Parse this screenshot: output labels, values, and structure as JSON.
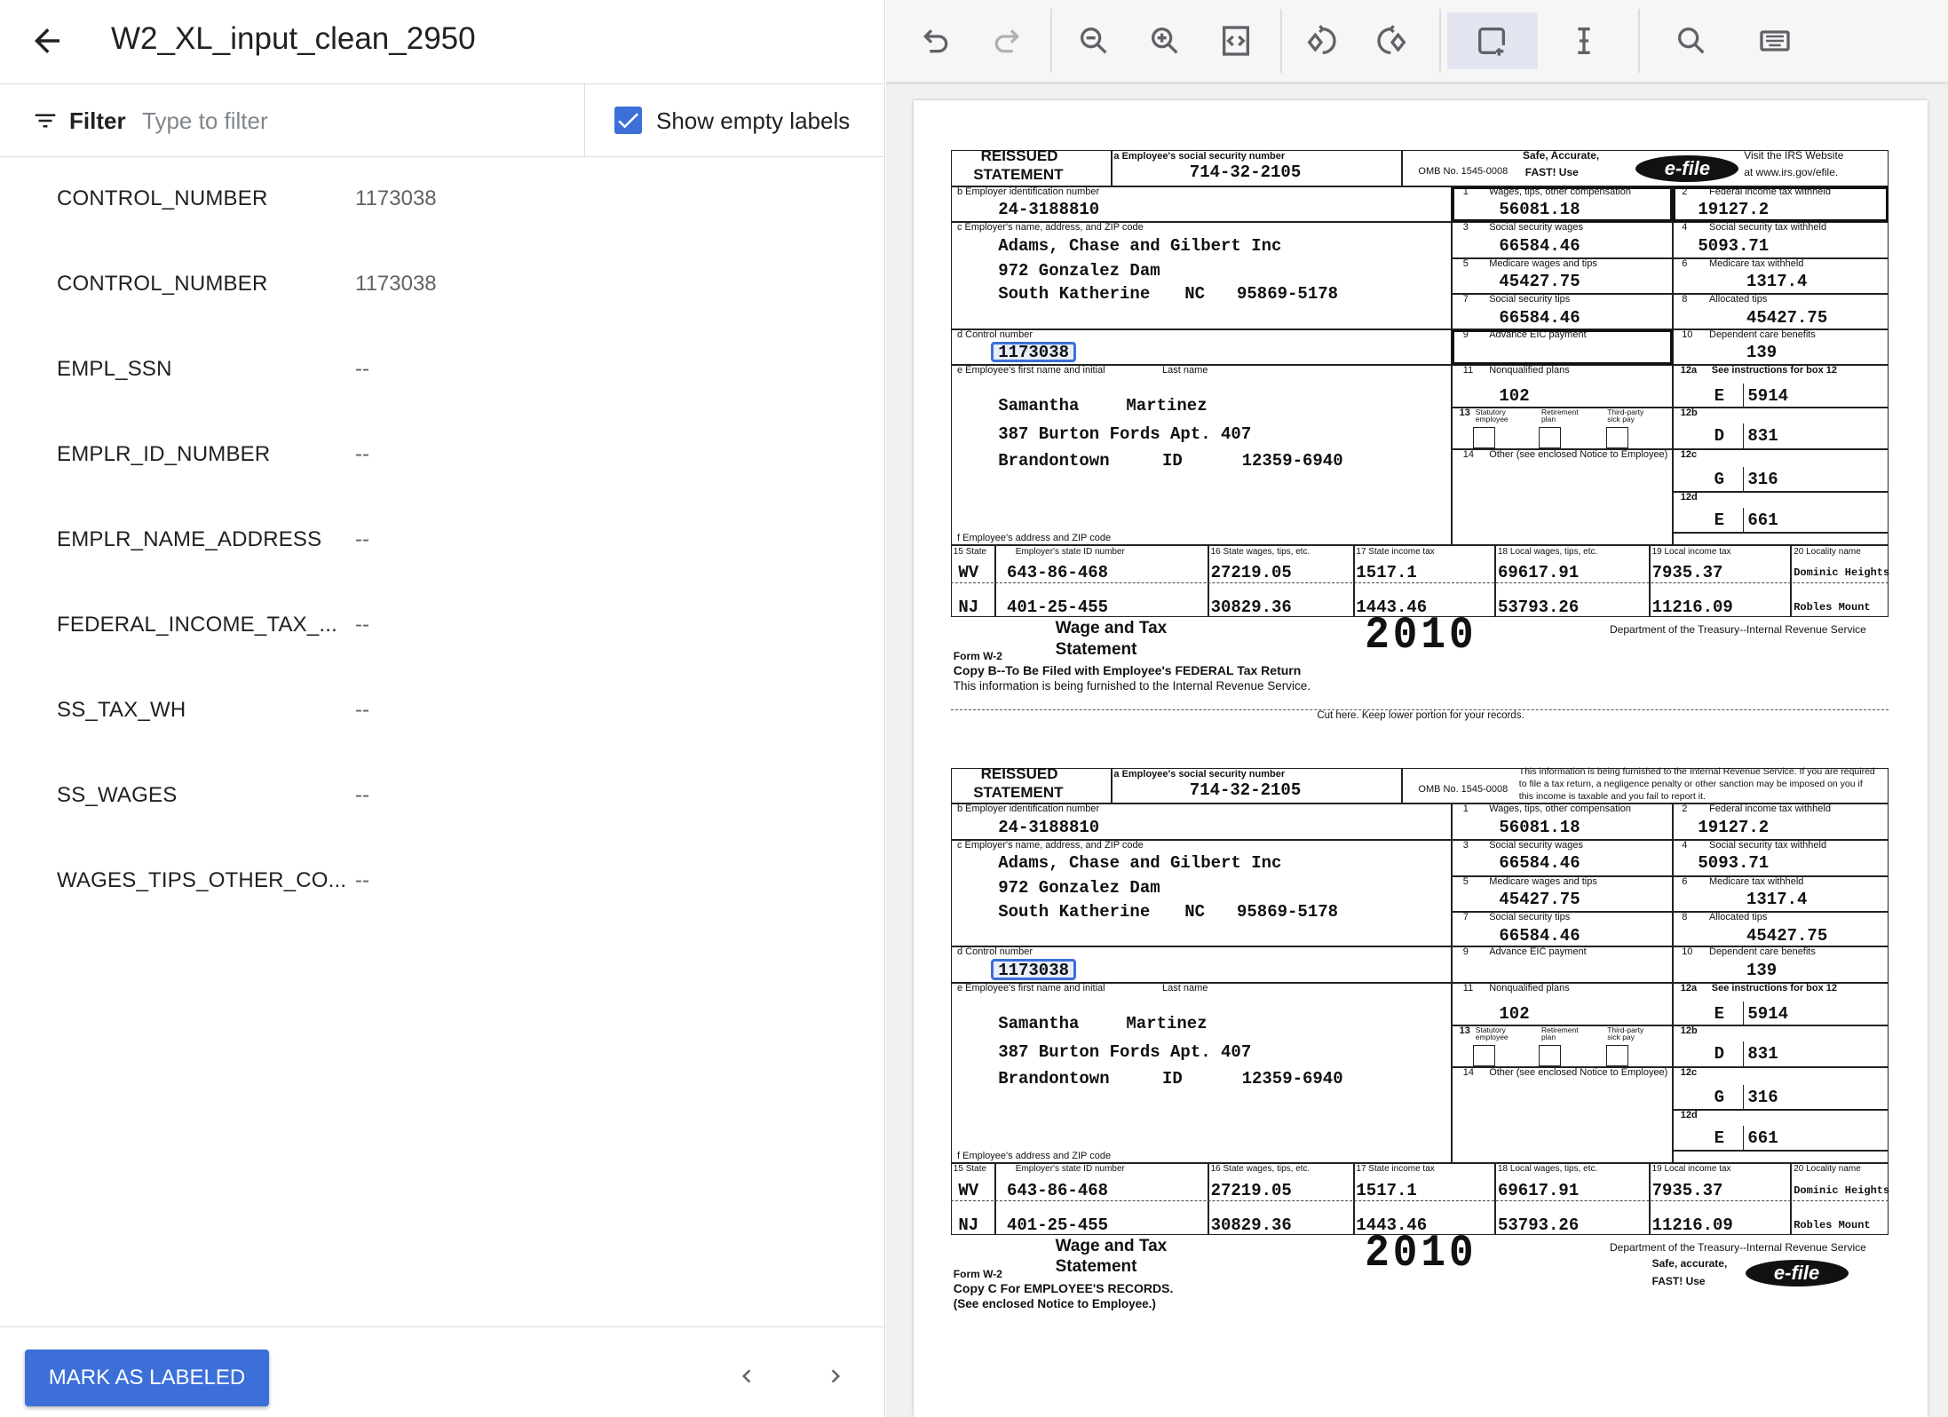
{
  "header": {
    "title": "W2_XL_input_clean_2950"
  },
  "filter": {
    "label": "Filter",
    "placeholder": "Type to filter",
    "value": "",
    "show_empty_label": "Show empty labels",
    "show_empty_checked": true
  },
  "fields": [
    {
      "key": "CONTROL_NUMBER",
      "value": "1173038"
    },
    {
      "key": "CONTROL_NUMBER",
      "value": "1173038"
    },
    {
      "key": "EMPL_SSN",
      "value": "--"
    },
    {
      "key": "EMPLR_ID_NUMBER",
      "value": "--"
    },
    {
      "key": "EMPLR_NAME_ADDRESS",
      "value": "--"
    },
    {
      "key": "FEDERAL_INCOME_TAX_...",
      "value": "--"
    },
    {
      "key": "SS_TAX_WH",
      "value": "--"
    },
    {
      "key": "SS_WAGES",
      "value": "--"
    },
    {
      "key": "WAGES_TIPS_OTHER_CO...",
      "value": "--"
    }
  ],
  "footer": {
    "mark_label": "MARK AS LABELED"
  },
  "toolbar": {
    "icons": [
      "undo-icon",
      "redo-icon",
      "zoom-out-icon",
      "zoom-in-icon",
      "fit-page-icon",
      "rotate-left-icon",
      "rotate-right-icon",
      "add-box-icon",
      "text-cursor-icon",
      "search-icon",
      "keyboard-icon"
    ],
    "selected": "add-box-icon",
    "accent": "#3c6fd8"
  },
  "form": {
    "reissued1": "REISSUED",
    "reissued2": "STATEMENT",
    "lbl_a": "a  Employee's social security number",
    "ssn": "714-32-2105",
    "omb": "OMB No. 1545-0008",
    "lbl_b": "b  Employer identification number",
    "ein": "24-3188810",
    "lbl_c": "c  Employer's name, address, and ZIP code",
    "employer_name": "Adams, Chase and Gilbert Inc",
    "employer_street": "972 Gonzalez Dam",
    "employer_city": "South Katherine",
    "employer_state": "NC",
    "employer_zip": "95869-5178",
    "lbl_d": "d  Control number",
    "control": "1173038",
    "lbl_e": "e  Employee's first name and initial",
    "lbl_last": "Last name",
    "first": "Samantha",
    "last": "Martinez",
    "emp_street": "387 Burton Fords Apt. 407",
    "emp_city": "Brandontown",
    "emp_state": "ID",
    "emp_zip": "12359-6940",
    "lbl_f": "f  Employee's address and ZIP code",
    "n1": "1",
    "l1": "Wages, tips, other compensation",
    "v1": "56081.18",
    "n2": "2",
    "l2": "Federal income tax withheld",
    "v2": "19127.2",
    "n3": "3",
    "l3": "Social security wages",
    "v3": "66584.46",
    "n4": "4",
    "l4": "Social security tax withheld",
    "v4": "5093.71",
    "n5": "5",
    "l5": "Medicare wages and tips",
    "v5": "45427.75",
    "n6": "6",
    "l6": "Medicare tax withheld",
    "v6": "1317.4",
    "n7": "7",
    "l7": "Social security tips",
    "v7": "66584.46",
    "n8": "8",
    "l8": "Allocated tips",
    "v8": "45427.75",
    "n9": "9",
    "l9": "Advance EIC payment",
    "n10": "10",
    "l10": "Dependent care benefits",
    "v10": "139",
    "n11": "11",
    "l11": "Nonqualified plans",
    "v11": "102",
    "n12a": "12a",
    "l12a": "See instructions for box 12",
    "c12a": "E",
    "v12a": "5914",
    "n12b": "12b",
    "c12b": "D",
    "v12b": "831",
    "n12c": "12c",
    "c12c": "G",
    "v12c": "316",
    "n12d": "12d",
    "c12d": "E",
    "v12d": "661",
    "n13": "13",
    "l13a1": "Statutory",
    "l13a2": "employee",
    "l13b1": "Retirement",
    "l13b2": "plan",
    "l13c1": "Third-party",
    "l13c2": "sick pay",
    "n14": "14",
    "l14": "Other (see enclosed Notice to Employee)",
    "l15": "15  State",
    "l15b": "Employer's state ID number",
    "l16": "16  State wages, tips, etc.",
    "l17": "17  State income tax",
    "l18": "18  Local wages, tips, etc.",
    "l19": "19  Local income tax",
    "l20": "20  Locality name",
    "states": [
      {
        "state": "WV",
        "id": "643-86-468",
        "wages": "27219.05",
        "tax": "1517.1",
        "local_wages": "69617.91",
        "local_tax": "7935.37",
        "locality": "Dominic Heights"
      },
      {
        "state": "NJ",
        "id": "401-25-455",
        "wages": "30829.36",
        "tax": "1443.46",
        "local_wages": "53793.26",
        "local_tax": "11216.09",
        "locality": "Robles Mount"
      }
    ],
    "wage1": "Wage and Tax",
    "wage2": "Statement",
    "formw2": "Form  W-2",
    "year": "2010",
    "dept": "Department of the Treasury--Internal Revenue Service",
    "efile": "e-file"
  },
  "copies": [
    {
      "safe1": "Safe, Accurate,",
      "safe2": "FAST!  Use",
      "visit1": "Visit the IRS Website",
      "visit2": "at www.irs.gov/efile.",
      "copy1": "Copy B--To Be Filed with Employee's FEDERAL Tax Return",
      "copy2": "This information is being furnished to the Internal Revenue Service."
    },
    {
      "notice1": "This information is being furnished to the Internal Revenue Service.  If you are required",
      "notice2": "to file a tax return, a negligence penalty or other sanction may be imposed on you if",
      "notice3": "this income is taxable and you fail to report it.",
      "copy1": "Copy C For EMPLOYEE'S RECORDS.",
      "copy2": "(See enclosed Notice to Employee.)",
      "safe1": "Safe, accurate,",
      "safe2": "FAST!  Use"
    }
  ],
  "cut_text": "Cut here.  Keep lower portion for your records."
}
